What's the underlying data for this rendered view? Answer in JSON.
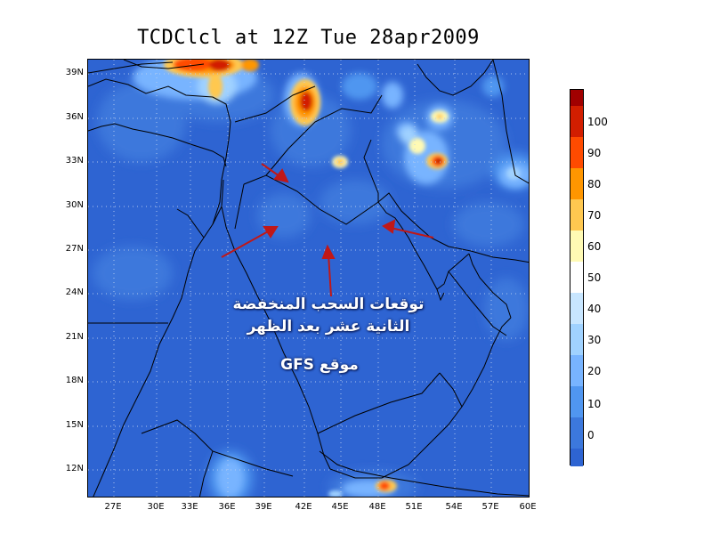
{
  "title": "TCDClcl at 12Z Tue 28apr2009",
  "lat_labels": [
    "39N",
    "36N",
    "33N",
    "30N",
    "27N",
    "24N",
    "21N",
    "18N",
    "15N",
    "12N"
  ],
  "lon_labels": [
    "27E",
    "30E",
    "33E",
    "36E",
    "39E",
    "42E",
    "45E",
    "48E",
    "51E",
    "54E",
    "57E",
    "60E"
  ],
  "colorbar": {
    "labels": [
      "100",
      "90",
      "80",
      "70",
      "60",
      "50",
      "40",
      "30",
      "20",
      "10",
      "0"
    ],
    "colors": [
      "#a00000",
      "#d21e00",
      "#ff4b00",
      "#ff9600",
      "#ffc850",
      "#fffab4",
      "#ffffff",
      "#c8e6ff",
      "#a0d2ff",
      "#78b4ff",
      "#5096f0",
      "#3c78dc",
      "#2e64d2"
    ]
  },
  "annotation": {
    "line1": "توقعات السحب المنخفضة",
    "line2": "الثانية عشر بعد الظهر",
    "line3": "موقع GFS"
  },
  "colors": {
    "background": "#2e64d2",
    "arrow": "#c01818",
    "border": "#000000"
  }
}
